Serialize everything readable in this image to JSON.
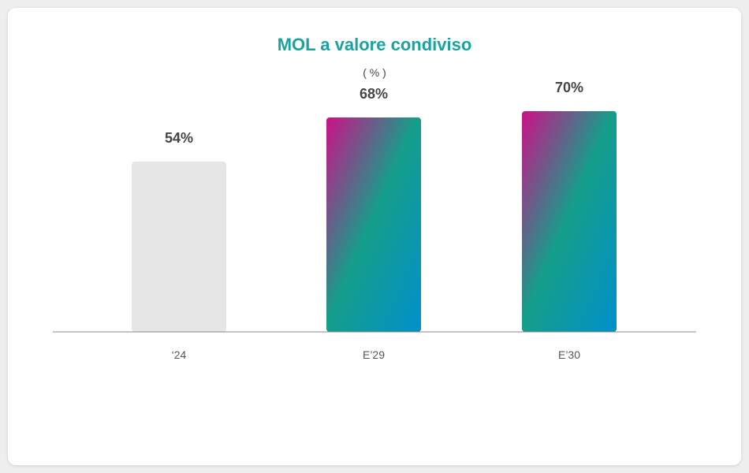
{
  "chart_data": {
    "type": "bar",
    "title": "MOL a valore condiviso",
    "subtitle": "( % )",
    "categories": [
      "‘24",
      "E’29",
      "E’30"
    ],
    "values": [
      54,
      68,
      70
    ],
    "value_labels": [
      "54%",
      "68%",
      "70%"
    ],
    "ylim": [
      0,
      100
    ],
    "grid": false,
    "colors": {
      "title": "#17a3a0",
      "actual_bar": "#e6e6e6",
      "gradient_start": "#cc1188",
      "gradient_mid": "#159e8a",
      "gradient_end": "#0090cc",
      "axis": "#888888"
    }
  }
}
